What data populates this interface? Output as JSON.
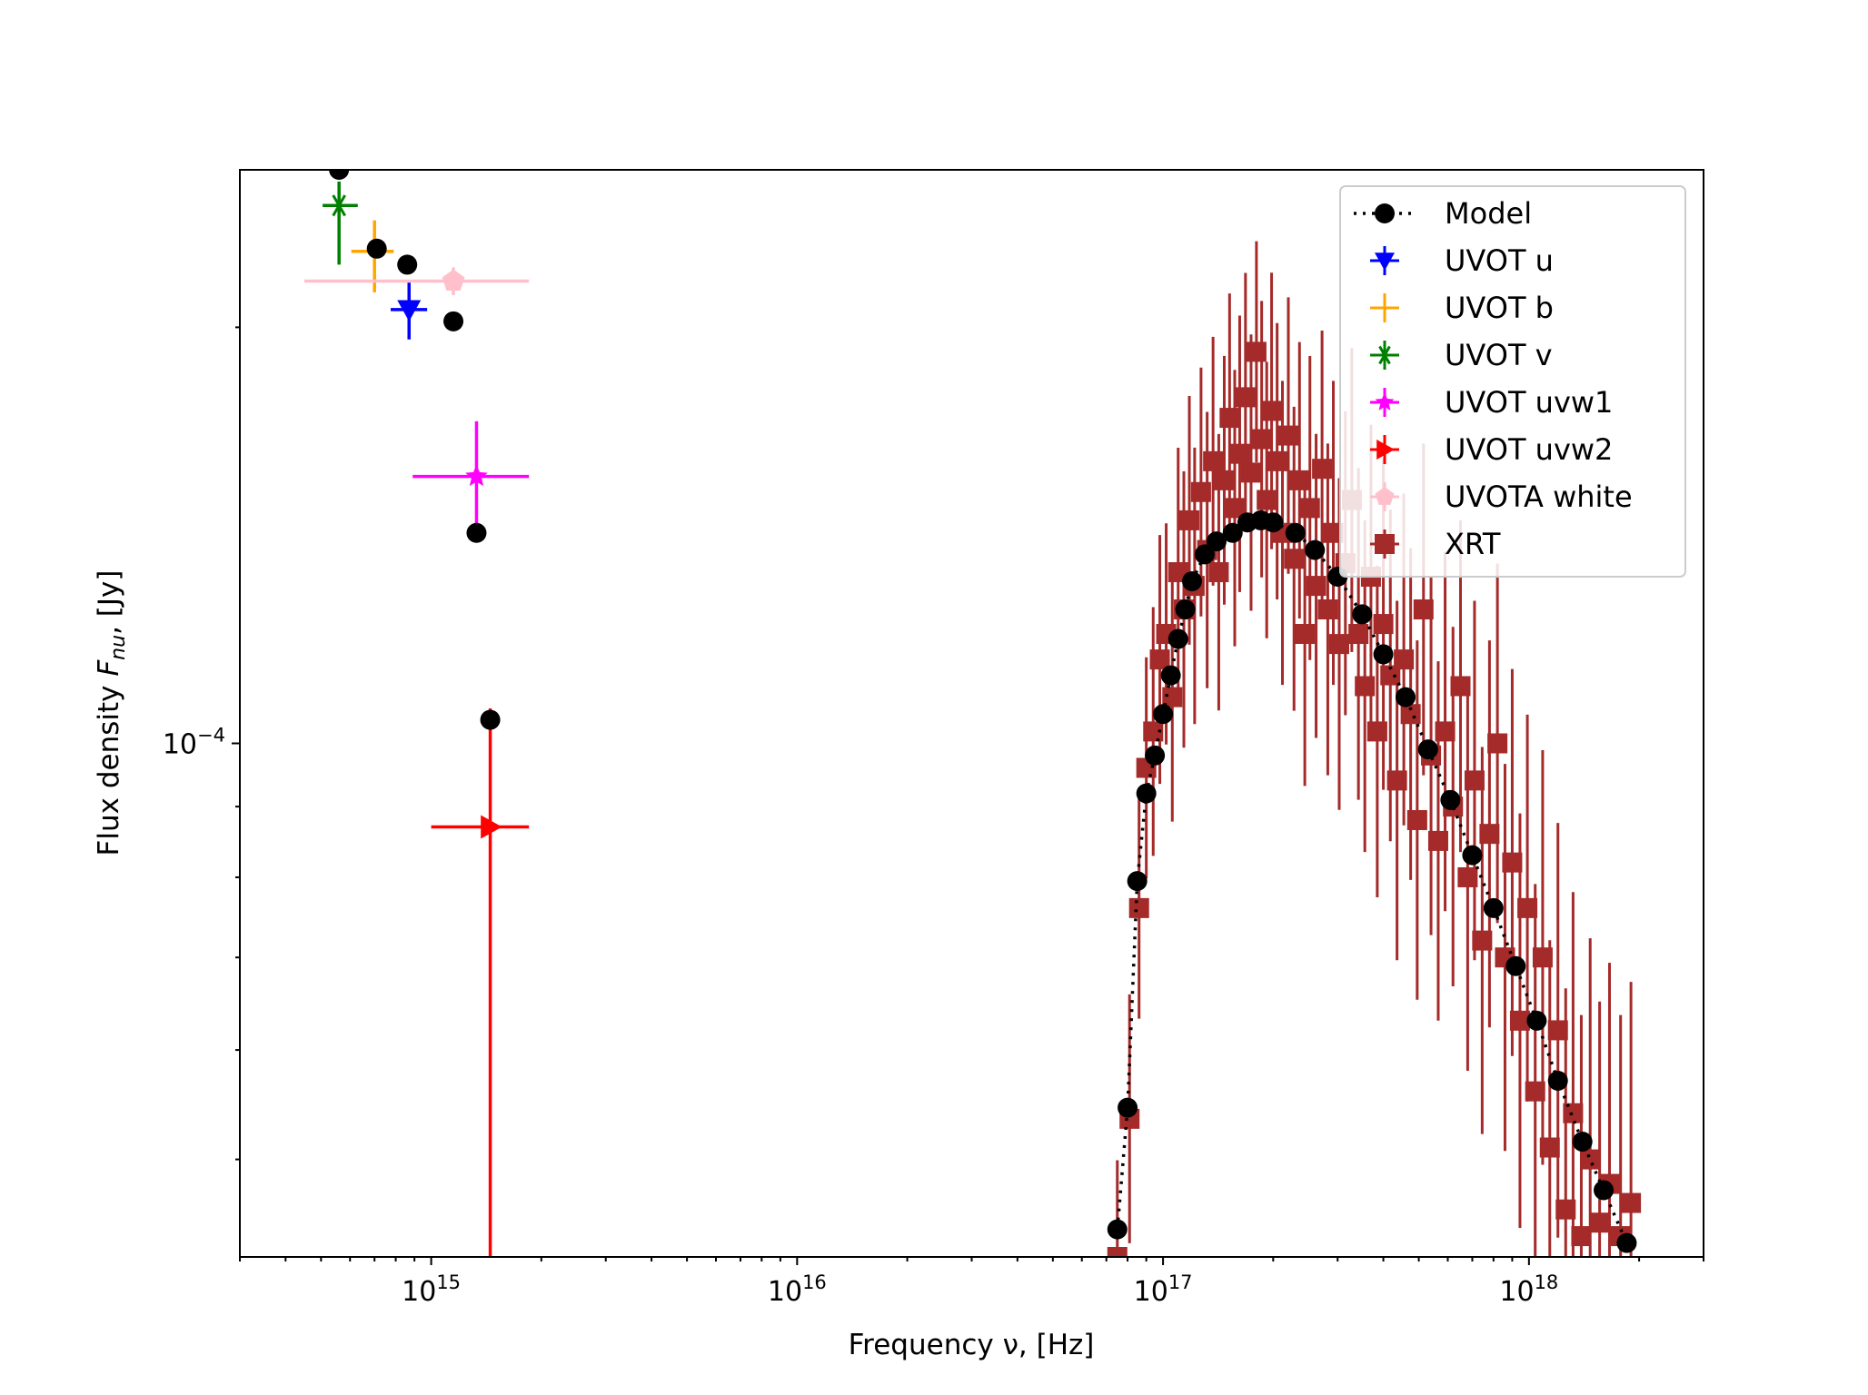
{
  "chart_data": {
    "type": "scatter",
    "title": "",
    "xlabel": "Frequency ν, [Hz]",
    "ylabel_prefix": "Flux density ",
    "ylabel_symbol": "F",
    "ylabel_subscript": "nu",
    "ylabel_suffix": ", [Jy]",
    "xscale": "log",
    "yscale": "log",
    "xlim": [
      300000000000000.0,
      3e+18
    ],
    "ylim": [
      4.25e-05,
      0.00026
    ],
    "x_ticks": [
      {
        "value": 1000000000000000.0,
        "base": "10",
        "exp": "15"
      },
      {
        "value": 1e+16,
        "base": "10",
        "exp": "16"
      },
      {
        "value": 1e+17,
        "base": "10",
        "exp": "17"
      },
      {
        "value": 1e+18,
        "base": "10",
        "exp": "18"
      }
    ],
    "y_ticks": [
      {
        "value": 0.0001,
        "base": "10",
        "exp": "−4"
      }
    ],
    "legend_position": "top-right",
    "legend": [
      {
        "key": "model",
        "label": "Model",
        "color": "#000000",
        "marker": "circle-dotted"
      },
      {
        "key": "u",
        "label": "UVOT  u",
        "color": "#0000ff",
        "marker": "triangle-down"
      },
      {
        "key": "b",
        "label": "UVOT  b",
        "color": "#ffa500",
        "marker": "plus"
      },
      {
        "key": "v",
        "label": "UVOT  v",
        "color": "#008000",
        "marker": "asterisk"
      },
      {
        "key": "uvw1",
        "label": "UVOT  uvw1",
        "color": "#ff00ff",
        "marker": "star"
      },
      {
        "key": "uvw2",
        "label": "UVOT  uvw2",
        "color": "#ff0000",
        "marker": "triangle-right"
      },
      {
        "key": "white",
        "label": "UVOTA white",
        "color": "#ffc0cb",
        "marker": "pentagon"
      },
      {
        "key": "xrt",
        "label": "XRT",
        "color": "#a52a2a",
        "marker": "square"
      }
    ],
    "uvot_points": [
      {
        "key": "v",
        "x": 560000000000000.0,
        "xerr_lo": 505000000000000.0,
        "xerr_hi": 630000000000000.0,
        "y": 0.000245,
        "yerr_lo": 0.000222,
        "yerr_hi": 0.000255
      },
      {
        "key": "b",
        "x": 700000000000000.0,
        "xerr_lo": 605000000000000.0,
        "xerr_hi": 790000000000000.0,
        "y": 0.000227,
        "yerr_lo": 0.000212,
        "yerr_hi": 0.000239
      },
      {
        "key": "u",
        "x": 870000000000000.0,
        "xerr_lo": 775000000000000.0,
        "xerr_hi": 975000000000000.0,
        "y": 0.000206,
        "yerr_lo": 0.000196,
        "yerr_hi": 0.000216
      },
      {
        "key": "white",
        "x": 1150000000000000.0,
        "xerr_lo": 450000000000000.0,
        "xerr_hi": 1850000000000000.0,
        "y": 0.000216,
        "yerr_lo": 0.000211,
        "yerr_hi": 0.000221
      },
      {
        "key": "uvw1",
        "x": 1330000000000000.0,
        "xerr_lo": 890000000000000.0,
        "xerr_hi": 1850000000000000.0,
        "y": 0.000156,
        "yerr_lo": 0.000141,
        "yerr_hi": 0.000171
      },
      {
        "key": "uvw2",
        "x": 1450000000000000.0,
        "xerr_lo": 1000000000000000.0,
        "xerr_hi": 1850000000000000.0,
        "y": 8.7e-05,
        "yerr_lo": 4.25e-05,
        "yerr_hi": 0.000106
      }
    ],
    "model_uvot": [
      {
        "x": 560000000000000.0,
        "y": 0.00026
      },
      {
        "x": 710000000000000.0,
        "y": 0.000228
      },
      {
        "x": 860000000000000.0,
        "y": 0.000222
      },
      {
        "x": 1150000000000000.0,
        "y": 0.000202
      },
      {
        "x": 1330000000000000.0,
        "y": 0.000142
      },
      {
        "x": 1450000000000000.0,
        "y": 0.000104
      }
    ],
    "model_xrt": [
      {
        "x": 7.5e+16,
        "y": 4.45e-05
      },
      {
        "x": 8e+16,
        "y": 5.45e-05
      },
      {
        "x": 8.5e+16,
        "y": 7.95e-05
      },
      {
        "x": 9e+16,
        "y": 9.2e-05
      },
      {
        "x": 9.5e+16,
        "y": 9.8e-05
      },
      {
        "x": 1e+17,
        "y": 0.000105
      },
      {
        "x": 1.05e+17,
        "y": 0.000112
      },
      {
        "x": 1.1e+17,
        "y": 0.000119
      },
      {
        "x": 1.15e+17,
        "y": 0.000125
      },
      {
        "x": 1.2e+17,
        "y": 0.000131
      },
      {
        "x": 1.3e+17,
        "y": 0.000137
      },
      {
        "x": 1.4e+17,
        "y": 0.00014
      },
      {
        "x": 1.55e+17,
        "y": 0.000142
      },
      {
        "x": 1.7e+17,
        "y": 0.0001445
      },
      {
        "x": 1.85e+17,
        "y": 0.000145
      },
      {
        "x": 2e+17,
        "y": 0.0001445
      },
      {
        "x": 2.3e+17,
        "y": 0.000142
      },
      {
        "x": 2.6e+17,
        "y": 0.000138
      },
      {
        "x": 3e+17,
        "y": 0.000132
      },
      {
        "x": 3.5e+17,
        "y": 0.000124
      },
      {
        "x": 4e+17,
        "y": 0.000116
      },
      {
        "x": 4.6e+17,
        "y": 0.000108
      },
      {
        "x": 5.3e+17,
        "y": 9.9e-05
      },
      {
        "x": 6.1e+17,
        "y": 9.1e-05
      },
      {
        "x": 7e+17,
        "y": 8.3e-05
      },
      {
        "x": 8e+17,
        "y": 7.6e-05
      },
      {
        "x": 9.2e+17,
        "y": 6.9e-05
      },
      {
        "x": 1.05e+18,
        "y": 6.3e-05
      },
      {
        "x": 1.2e+18,
        "y": 5.7e-05
      },
      {
        "x": 1.4e+18,
        "y": 5.15e-05
      },
      {
        "x": 1.6e+18,
        "y": 4.75e-05
      },
      {
        "x": 1.85e+18,
        "y": 4.35e-05
      }
    ],
    "xrt_points": [
      {
        "x": 7.5e+16,
        "y": 4.25e-05,
        "yerr": 0.07
      },
      {
        "x": 8.1e+16,
        "y": 5.35e-05,
        "yerr": 0.09
      },
      {
        "x": 8.6e+16,
        "y": 7.6e-05,
        "yerr": 0.08
      },
      {
        "x": 9e+16,
        "y": 9.6e-05,
        "yerr": 0.08
      },
      {
        "x": 9.4e+16,
        "y": 0.000102,
        "yerr": 0.09
      },
      {
        "x": 9.8e+16,
        "y": 0.000115,
        "yerr": 0.09
      },
      {
        "x": 1.02e+17,
        "y": 0.00012,
        "yerr": 0.08
      },
      {
        "x": 1.06e+17,
        "y": 0.000108,
        "yerr": 0.09
      },
      {
        "x": 1.1e+17,
        "y": 0.000133,
        "yerr": 0.09
      },
      {
        "x": 1.14e+17,
        "y": 0.000125,
        "yerr": 0.1
      },
      {
        "x": 1.18e+17,
        "y": 0.000145,
        "yerr": 0.09
      },
      {
        "x": 1.22e+17,
        "y": 0.00013,
        "yerr": 0.1
      },
      {
        "x": 1.27e+17,
        "y": 0.000152,
        "yerr": 0.09
      },
      {
        "x": 1.32e+17,
        "y": 0.000138,
        "yerr": 0.1
      },
      {
        "x": 1.37e+17,
        "y": 0.00016,
        "yerr": 0.09
      },
      {
        "x": 1.42e+17,
        "y": 0.000133,
        "yerr": 0.1
      },
      {
        "x": 1.47e+17,
        "y": 0.000155,
        "yerr": 0.09
      },
      {
        "x": 1.52e+17,
        "y": 0.000172,
        "yerr": 0.09
      },
      {
        "x": 1.57e+17,
        "y": 0.000148,
        "yerr": 0.1
      },
      {
        "x": 1.62e+17,
        "y": 0.000162,
        "yerr": 0.1
      },
      {
        "x": 1.68e+17,
        "y": 0.000178,
        "yerr": 0.09
      },
      {
        "x": 1.74e+17,
        "y": 0.000157,
        "yerr": 0.1
      },
      {
        "x": 1.8e+17,
        "y": 0.000192,
        "yerr": 0.08
      },
      {
        "x": 1.86e+17,
        "y": 0.000166,
        "yerr": 0.1
      },
      {
        "x": 1.92e+17,
        "y": 0.00015,
        "yerr": 0.1
      },
      {
        "x": 1.98e+17,
        "y": 0.000174,
        "yerr": 0.1
      },
      {
        "x": 2.05e+17,
        "y": 0.00016,
        "yerr": 0.1
      },
      {
        "x": 2.12e+17,
        "y": 0.000142,
        "yerr": 0.11
      },
      {
        "x": 2.2e+17,
        "y": 0.000167,
        "yerr": 0.1
      },
      {
        "x": 2.28e+17,
        "y": 0.000136,
        "yerr": 0.11
      },
      {
        "x": 2.36e+17,
        "y": 0.000155,
        "yerr": 0.1
      },
      {
        "x": 2.44e+17,
        "y": 0.00012,
        "yerr": 0.11
      },
      {
        "x": 2.52e+17,
        "y": 0.000148,
        "yerr": 0.11
      },
      {
        "x": 2.62e+17,
        "y": 0.00013,
        "yerr": 0.11
      },
      {
        "x": 2.72e+17,
        "y": 0.000158,
        "yerr": 0.1
      },
      {
        "x": 2.82e+17,
        "y": 0.000125,
        "yerr": 0.12
      },
      {
        "x": 2.92e+17,
        "y": 0.000142,
        "yerr": 0.11
      },
      {
        "x": 3.03e+17,
        "y": 0.000118,
        "yerr": 0.12
      },
      {
        "x": 3.15e+17,
        "y": 0.000135,
        "yerr": 0.11
      },
      {
        "x": 3.28e+17,
        "y": 0.00015,
        "yerr": 0.11
      },
      {
        "x": 3.42e+17,
        "y": 0.00012,
        "yerr": 0.12
      },
      {
        "x": 3.56e+17,
        "y": 0.00011,
        "yerr": 0.12
      },
      {
        "x": 3.7e+17,
        "y": 0.000132,
        "yerr": 0.11
      },
      {
        "x": 3.85e+17,
        "y": 0.000102,
        "yerr": 0.12
      },
      {
        "x": 4e+17,
        "y": 0.000122,
        "yerr": 0.12
      },
      {
        "x": 4.18e+17,
        "y": 0.000112,
        "yerr": 0.12
      },
      {
        "x": 4.36e+17,
        "y": 9.4e-05,
        "yerr": 0.13
      },
      {
        "x": 4.55e+17,
        "y": 0.000115,
        "yerr": 0.12
      },
      {
        "x": 4.75e+17,
        "y": 0.000105,
        "yerr": 0.12
      },
      {
        "x": 4.95e+17,
        "y": 8.8e-05,
        "yerr": 0.13
      },
      {
        "x": 5.15e+17,
        "y": 0.000125,
        "yerr": 0.12
      },
      {
        "x": 5.4e+17,
        "y": 9.8e-05,
        "yerr": 0.13
      },
      {
        "x": 5.65e+17,
        "y": 8.5e-05,
        "yerr": 0.13
      },
      {
        "x": 5.9e+17,
        "y": 0.000102,
        "yerr": 0.13
      },
      {
        "x": 6.2e+17,
        "y": 9e-05,
        "yerr": 0.13
      },
      {
        "x": 6.5e+17,
        "y": 0.00011,
        "yerr": 0.12
      },
      {
        "x": 6.8e+17,
        "y": 8e-05,
        "yerr": 0.14
      },
      {
        "x": 7.1e+17,
        "y": 9.4e-05,
        "yerr": 0.13
      },
      {
        "x": 7.45e+17,
        "y": 7.2e-05,
        "yerr": 0.14
      },
      {
        "x": 7.8e+17,
        "y": 8.6e-05,
        "yerr": 0.14
      },
      {
        "x": 8.2e+17,
        "y": 0.0001,
        "yerr": 0.13
      },
      {
        "x": 8.6e+17,
        "y": 7e-05,
        "yerr": 0.14
      },
      {
        "x": 9e+17,
        "y": 8.2e-05,
        "yerr": 0.14
      },
      {
        "x": 9.45e+17,
        "y": 6.3e-05,
        "yerr": 0.15
      },
      {
        "x": 9.9e+17,
        "y": 7.6e-05,
        "yerr": 0.14
      },
      {
        "x": 1.04e+18,
        "y": 5.6e-05,
        "yerr": 0.15
      },
      {
        "x": 1.09e+18,
        "y": 7e-05,
        "yerr": 0.15
      },
      {
        "x": 1.14e+18,
        "y": 5.1e-05,
        "yerr": 0.15
      },
      {
        "x": 1.2e+18,
        "y": 6.2e-05,
        "yerr": 0.15
      },
      {
        "x": 1.26e+18,
        "y": 4.6e-05,
        "yerr": 0.16
      },
      {
        "x": 1.32e+18,
        "y": 5.4e-05,
        "yerr": 0.16
      },
      {
        "x": 1.39e+18,
        "y": 4.4e-05,
        "yerr": 0.16
      },
      {
        "x": 1.47e+18,
        "y": 5e-05,
        "yerr": 0.16
      },
      {
        "x": 1.56e+18,
        "y": 4.5e-05,
        "yerr": 0.16
      },
      {
        "x": 1.66e+18,
        "y": 4.8e-05,
        "yerr": 0.16
      },
      {
        "x": 1.78e+18,
        "y": 4.4e-05,
        "yerr": 0.16
      },
      {
        "x": 1.9e+18,
        "y": 4.65e-05,
        "yerr": 0.16
      }
    ]
  }
}
